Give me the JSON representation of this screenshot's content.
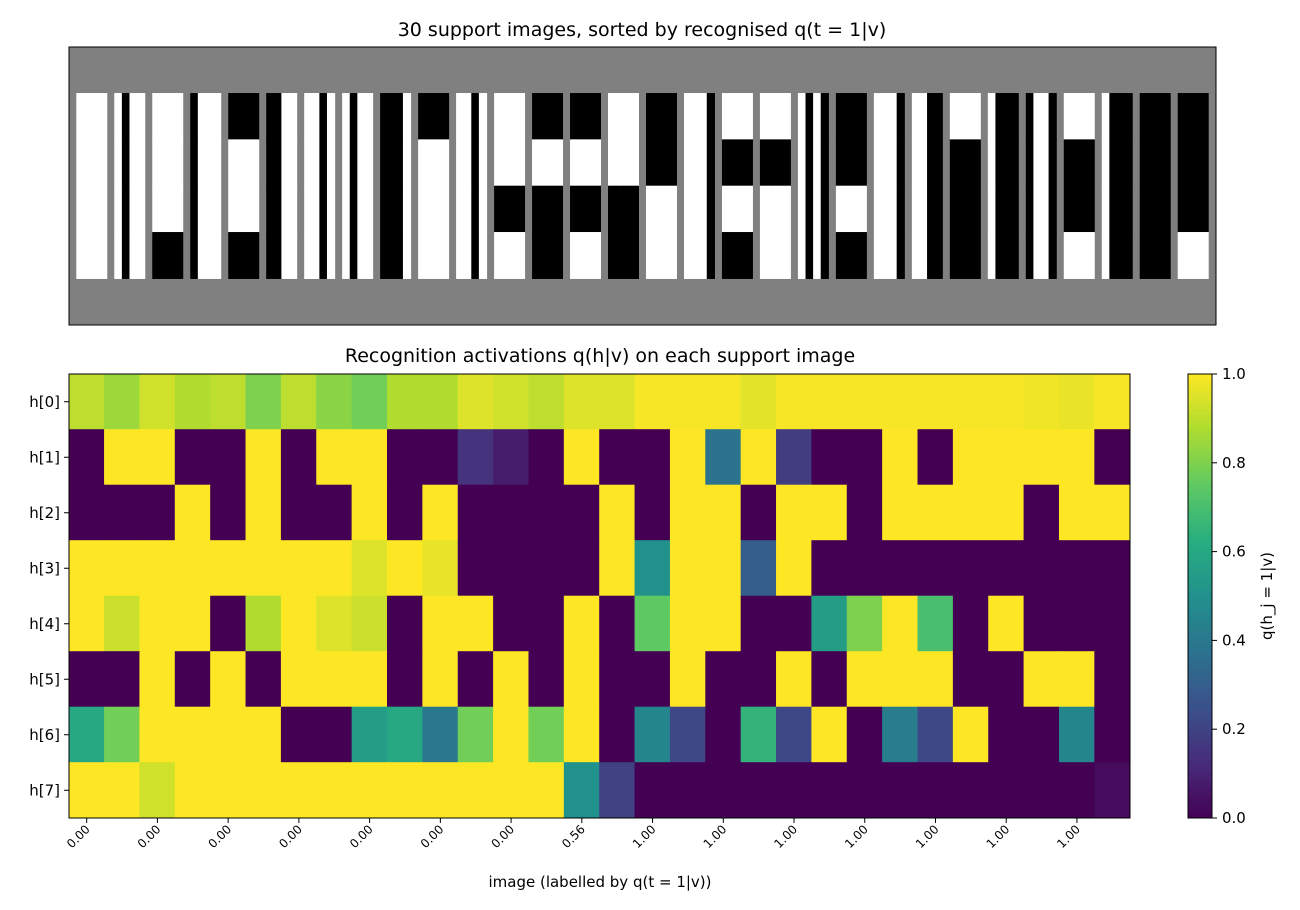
{
  "support_images": {
    "title": "30 support images, sorted by recognised q(t = 1|v)",
    "background": "#808080",
    "images": [
      [
        [
          1,
          1,
          1,
          1
        ],
        [
          1,
          1,
          1,
          1
        ],
        [
          1,
          1,
          1,
          1
        ],
        [
          1,
          1,
          1,
          1
        ]
      ],
      [
        [
          1,
          0,
          1,
          1
        ],
        [
          1,
          0,
          1,
          1
        ],
        [
          1,
          0,
          1,
          1
        ],
        [
          1,
          0,
          1,
          1
        ]
      ],
      [
        [
          1,
          1,
          1,
          1
        ],
        [
          1,
          1,
          1,
          1
        ],
        [
          1,
          1,
          1,
          1
        ],
        [
          0,
          0,
          0,
          0
        ]
      ],
      [
        [
          0,
          1,
          1,
          1
        ],
        [
          0,
          1,
          1,
          1
        ],
        [
          0,
          1,
          1,
          1
        ],
        [
          0,
          1,
          1,
          1
        ]
      ],
      [
        [
          0,
          0,
          0,
          0
        ],
        [
          1,
          1,
          1,
          1
        ],
        [
          1,
          1,
          1,
          1
        ],
        [
          0,
          0,
          0,
          0
        ]
      ],
      [
        [
          0,
          0,
          1,
          1
        ],
        [
          0,
          0,
          1,
          1
        ],
        [
          0,
          0,
          1,
          1
        ],
        [
          0,
          0,
          1,
          1
        ]
      ],
      [
        [
          1,
          1,
          0,
          1
        ],
        [
          1,
          1,
          0,
          1
        ],
        [
          1,
          1,
          0,
          1
        ],
        [
          1,
          1,
          0,
          1
        ]
      ],
      [
        [
          1,
          0,
          1,
          1
        ],
        [
          1,
          0,
          1,
          1
        ],
        [
          1,
          0,
          1,
          1
        ],
        [
          1,
          0,
          1,
          1
        ]
      ],
      [
        [
          0,
          0,
          0,
          1
        ],
        [
          0,
          0,
          0,
          1
        ],
        [
          0,
          0,
          0,
          1
        ],
        [
          0,
          0,
          0,
          1
        ]
      ],
      [
        [
          0,
          0,
          0,
          0
        ],
        [
          1,
          1,
          1,
          1
        ],
        [
          1,
          1,
          1,
          1
        ],
        [
          1,
          1,
          1,
          1
        ]
      ],
      [
        [
          1,
          1,
          0,
          1
        ],
        [
          1,
          1,
          0,
          1
        ],
        [
          1,
          1,
          0,
          1
        ],
        [
          1,
          1,
          0,
          1
        ]
      ],
      [
        [
          1,
          1,
          1,
          1
        ],
        [
          1,
          1,
          1,
          1
        ],
        [
          0,
          0,
          0,
          0
        ],
        [
          1,
          1,
          1,
          1
        ]
      ],
      [
        [
          0,
          0,
          0,
          0
        ],
        [
          1,
          1,
          1,
          1
        ],
        [
          0,
          0,
          0,
          0
        ],
        [
          0,
          0,
          0,
          0
        ]
      ],
      [
        [
          0,
          0,
          0,
          0
        ],
        [
          1,
          1,
          1,
          1
        ],
        [
          0,
          0,
          0,
          0
        ],
        [
          1,
          1,
          1,
          1
        ]
      ],
      [
        [
          1,
          1,
          1,
          1
        ],
        [
          1,
          1,
          1,
          1
        ],
        [
          0,
          0,
          0,
          0
        ],
        [
          0,
          0,
          0,
          0
        ]
      ],
      [
        [
          0,
          0,
          0,
          0
        ],
        [
          0,
          0,
          0,
          0
        ],
        [
          1,
          1,
          1,
          1
        ],
        [
          1,
          1,
          1,
          1
        ]
      ],
      [
        [
          1,
          1,
          1,
          0
        ],
        [
          1,
          1,
          1,
          0
        ],
        [
          1,
          1,
          1,
          0
        ],
        [
          1,
          1,
          1,
          0
        ]
      ],
      [
        [
          1,
          1,
          1,
          1
        ],
        [
          0,
          0,
          0,
          0
        ],
        [
          1,
          1,
          1,
          1
        ],
        [
          0,
          0,
          0,
          0
        ]
      ],
      [
        [
          1,
          1,
          1,
          1
        ],
        [
          0,
          0,
          0,
          0
        ],
        [
          1,
          1,
          1,
          1
        ],
        [
          1,
          1,
          1,
          1
        ]
      ],
      [
        [
          1,
          0,
          1,
          0
        ],
        [
          1,
          0,
          1,
          0
        ],
        [
          1,
          0,
          1,
          0
        ],
        [
          1,
          0,
          1,
          0
        ]
      ],
      [
        [
          0,
          0,
          0,
          0
        ],
        [
          0,
          0,
          0,
          0
        ],
        [
          1,
          1,
          1,
          1
        ],
        [
          0,
          0,
          0,
          0
        ]
      ],
      [
        [
          1,
          1,
          1,
          0
        ],
        [
          1,
          1,
          1,
          0
        ],
        [
          1,
          1,
          1,
          0
        ],
        [
          1,
          1,
          1,
          0
        ]
      ],
      [
        [
          1,
          1,
          0,
          0
        ],
        [
          1,
          1,
          0,
          0
        ],
        [
          1,
          1,
          0,
          0
        ],
        [
          1,
          1,
          0,
          0
        ]
      ],
      [
        [
          1,
          1,
          1,
          1
        ],
        [
          0,
          0,
          0,
          0
        ],
        [
          0,
          0,
          0,
          0
        ],
        [
          0,
          0,
          0,
          0
        ]
      ],
      [
        [
          1,
          0,
          0,
          0
        ],
        [
          1,
          0,
          0,
          0
        ],
        [
          1,
          0,
          0,
          0
        ],
        [
          1,
          0,
          0,
          0
        ]
      ],
      [
        [
          0,
          1,
          1,
          0
        ],
        [
          0,
          1,
          1,
          0
        ],
        [
          0,
          1,
          1,
          0
        ],
        [
          0,
          1,
          1,
          0
        ]
      ],
      [
        [
          1,
          1,
          1,
          1
        ],
        [
          0,
          0,
          0,
          0
        ],
        [
          0,
          0,
          0,
          0
        ],
        [
          1,
          1,
          1,
          1
        ]
      ],
      [
        [
          1,
          0,
          0,
          0
        ],
        [
          1,
          0,
          0,
          0
        ],
        [
          1,
          0,
          0,
          0
        ],
        [
          1,
          0,
          0,
          0
        ]
      ],
      [
        [
          0,
          0,
          0,
          0
        ],
        [
          0,
          0,
          0,
          0
        ],
        [
          0,
          0,
          0,
          0
        ],
        [
          0,
          0,
          0,
          0
        ]
      ],
      [
        [
          0,
          0,
          0,
          0
        ],
        [
          0,
          0,
          0,
          0
        ],
        [
          0,
          0,
          0,
          0
        ],
        [
          1,
          1,
          1,
          1
        ]
      ]
    ]
  },
  "chart_data": {
    "type": "heatmap",
    "title": "Recognition activations q(h|v) on each support image",
    "x_label": "image (labelled by q(t = 1|v))",
    "rows": [
      "h[0]",
      "h[1]",
      "h[2]",
      "h[3]",
      "h[4]",
      "h[5]",
      "h[6]",
      "h[7]"
    ],
    "values": [
      [
        0.9,
        0.85,
        0.93,
        0.88,
        0.9,
        0.8,
        0.9,
        0.82,
        0.78,
        0.88,
        0.88,
        0.95,
        0.93,
        0.9,
        0.95,
        0.95,
        0.99,
        0.99,
        0.99,
        0.96,
        0.99,
        0.99,
        0.99,
        0.99,
        0.99,
        0.99,
        0.99,
        0.98,
        0.97,
        0.99
      ],
      [
        0,
        1,
        1,
        0,
        0,
        1,
        0,
        1,
        1,
        0,
        0,
        0.15,
        0.08,
        0,
        1,
        0,
        0,
        1,
        0.38,
        1,
        0.18,
        0,
        0,
        1,
        0,
        1,
        1,
        1,
        1,
        0
      ],
      [
        0,
        0,
        0,
        1,
        0,
        1,
        0,
        0,
        1,
        0,
        1,
        0,
        0,
        0,
        0,
        1,
        0,
        1,
        1,
        0,
        1,
        1,
        0,
        1,
        1,
        1,
        1,
        0,
        1,
        1
      ],
      [
        1,
        1,
        1,
        1,
        1,
        1,
        1,
        1,
        0.95,
        1,
        0.97,
        0,
        0,
        0,
        0,
        1,
        0.5,
        1,
        1,
        0.3,
        1,
        0,
        0,
        0,
        0,
        0,
        0,
        0,
        0,
        0
      ],
      [
        1,
        0.92,
        1,
        1,
        0,
        0.88,
        1,
        0.95,
        0.92,
        0,
        1,
        1,
        0,
        0,
        1,
        0,
        0.75,
        1,
        1,
        0,
        0,
        0.55,
        0.8,
        1,
        0.7,
        0,
        1,
        0,
        0,
        0
      ],
      [
        0,
        0,
        1,
        0,
        1,
        0,
        1,
        1,
        1,
        0,
        1,
        0,
        1,
        0,
        1,
        0,
        0,
        1,
        0,
        0,
        1,
        0,
        1,
        1,
        1,
        0,
        0,
        1,
        1,
        0
      ],
      [
        0.6,
        0.78,
        1,
        1,
        1,
        1,
        0,
        0,
        0.55,
        0.6,
        0.4,
        0.78,
        1,
        0.78,
        1,
        0,
        0.45,
        0.22,
        0,
        0.65,
        0.22,
        1,
        0,
        0.42,
        0.22,
        1,
        0,
        0,
        0.45,
        0
      ],
      [
        1,
        1,
        0.93,
        1,
        1,
        1,
        1,
        1,
        1,
        1,
        1,
        1,
        1,
        1,
        0.5,
        0.2,
        0,
        0,
        0,
        0,
        0,
        0,
        0,
        0,
        0,
        0,
        0,
        0,
        0,
        0.03
      ]
    ],
    "xticks": [
      {
        "value": 0,
        "label": "0.00"
      },
      {
        "value": 2,
        "label": "0.00"
      },
      {
        "value": 4,
        "label": "0.00"
      },
      {
        "value": 6,
        "label": "0.00"
      },
      {
        "value": 8,
        "label": "0.00"
      },
      {
        "value": 10,
        "label": "0.00"
      },
      {
        "value": 12,
        "label": "0.00"
      },
      {
        "value": 14,
        "label": "0.56"
      },
      {
        "value": 16,
        "label": "1.00"
      },
      {
        "value": 18,
        "label": "1.00"
      },
      {
        "value": 20,
        "label": "1.00"
      },
      {
        "value": 22,
        "label": "1.00"
      },
      {
        "value": 24,
        "label": "1.00"
      },
      {
        "value": 26,
        "label": "1.00"
      },
      {
        "value": 28,
        "label": "1.00"
      }
    ],
    "colorbar": {
      "label": "q(h_j = 1|v)",
      "lim": [
        0,
        1
      ],
      "cmap": "viridis",
      "ticks": [
        {
          "value": 0,
          "label": "0.0"
        },
        {
          "value": 0.2,
          "label": "0.2"
        },
        {
          "value": 0.4,
          "label": "0.4"
        },
        {
          "value": 0.6,
          "label": "0.6"
        },
        {
          "value": 0.8,
          "label": "0.8"
        },
        {
          "value": 1,
          "label": "1.0"
        }
      ]
    }
  }
}
